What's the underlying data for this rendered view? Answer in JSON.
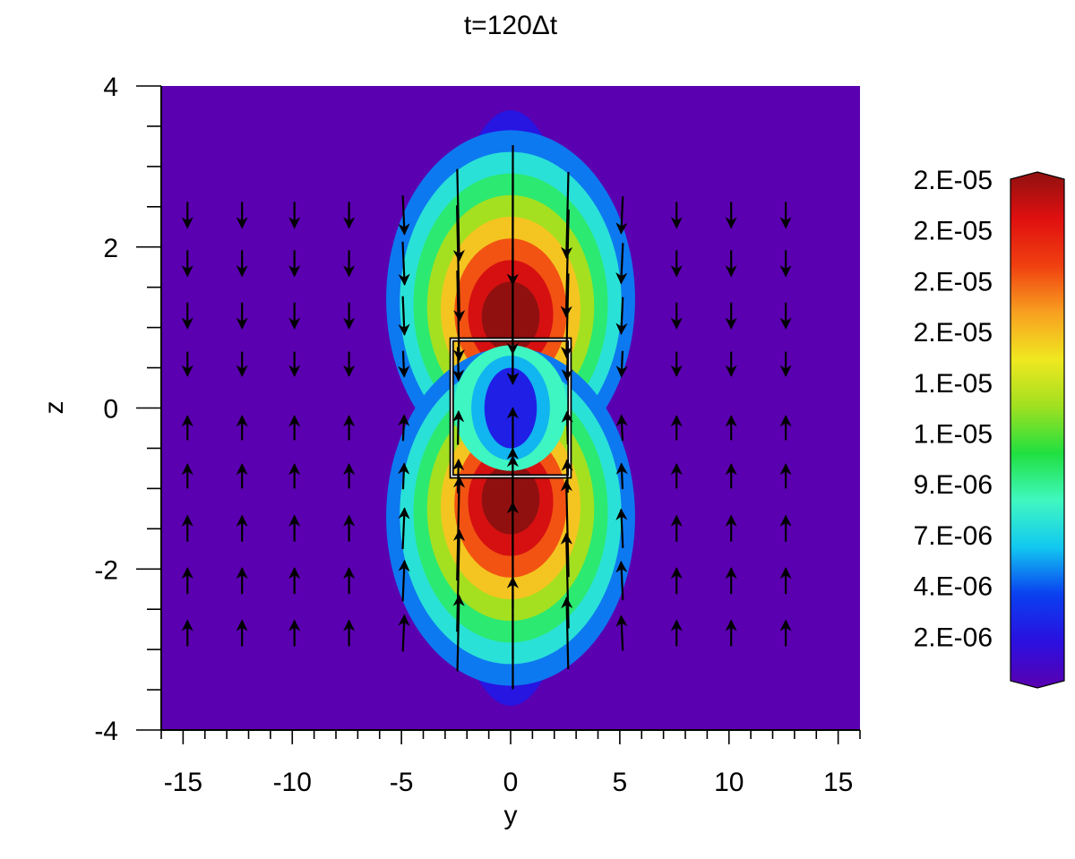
{
  "chart_data": {
    "type": "heatmap",
    "title": "t=120Δt",
    "xlabel": "y",
    "ylabel": "z",
    "xlim": [
      -16,
      16
    ],
    "ylim": [
      -4,
      4
    ],
    "x_ticks": [
      -15,
      -10,
      -5,
      0,
      5,
      10,
      15
    ],
    "x_tick_labels": [
      "-15",
      "-10",
      "-5",
      "0",
      "5",
      "10",
      "15"
    ],
    "y_ticks": [
      -4,
      -2,
      0,
      2,
      4
    ],
    "y_tick_labels": [
      "-4",
      "-2",
      "0",
      "2",
      "4"
    ],
    "grid": false,
    "colormap": [
      "#5a00b0",
      "#2a10e0",
      "#0a40f0",
      "#12c8f0",
      "#40f8c0",
      "#20e040",
      "#a0e020",
      "#f0e820",
      "#f8a020",
      "#f04010",
      "#e01010",
      "#901010"
    ],
    "colorbar_labels": [
      "2.E-05",
      "2.E-05",
      "2.E-05",
      "2.E-05",
      "1.E-05",
      "1.E-05",
      "9.E-06",
      "7.E-06",
      "4.E-06",
      "2.E-06"
    ],
    "colorbar_range": [
      0,
      2e-05
    ],
    "field_peaks": [
      {
        "y": 0,
        "z": 1.1,
        "value": 2e-05
      },
      {
        "y": 0,
        "z": -1.1,
        "value": 2e-05
      }
    ],
    "region_box": {
      "y": [
        -2.7,
        2.7
      ],
      "z": [
        -0.85,
        0.85
      ]
    },
    "vector_field": {
      "columns": [
        -14.8,
        -12.3,
        -9.9,
        -7.4,
        -4.9,
        -2.4,
        0.1,
        2.6,
        5.1,
        7.6,
        10.1,
        12.6
      ],
      "rows": [
        2.4,
        1.8,
        1.15,
        0.55,
        -0.25,
        -0.85,
        -1.5,
        -2.15,
        -2.8
      ]
    }
  }
}
